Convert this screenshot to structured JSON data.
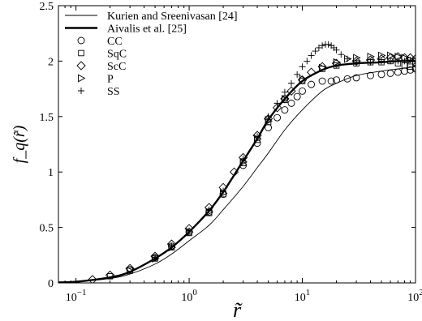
{
  "chart_data": {
    "type": "line",
    "xscale": "log",
    "xlim": [
      0.07,
      100
    ],
    "ylim": [
      0,
      2.5
    ],
    "xlabel": "r̃",
    "ylabel": "f_q(r̃)",
    "x_ticks": [
      {
        "value": 0.1,
        "base": "10",
        "exp": "−1"
      },
      {
        "value": 1,
        "base": "10",
        "exp": "0"
      },
      {
        "value": 10,
        "base": "10",
        "exp": "1"
      },
      {
        "value": 100,
        "base": "10",
        "exp": "2"
      }
    ],
    "y_ticks": [
      {
        "value": 0,
        "label": "0"
      },
      {
        "value": 0.5,
        "label": "0.5"
      },
      {
        "value": 1,
        "label": "1"
      },
      {
        "value": 1.5,
        "label": "1.5"
      },
      {
        "value": 2,
        "label": "2"
      },
      {
        "value": 2.5,
        "label": "2.5"
      }
    ],
    "legend_position": "top-left",
    "series": [
      {
        "name": "Kurien and Sreenivasan [24]",
        "style": "thin-line",
        "x": [
          0.07,
          0.1,
          0.2,
          0.3,
          0.5,
          0.7,
          1,
          1.5,
          2,
          3,
          4,
          5,
          7,
          10,
          15,
          20,
          30,
          50,
          70,
          100
        ],
        "y": [
          0.005,
          0.01,
          0.04,
          0.08,
          0.17,
          0.26,
          0.38,
          0.52,
          0.66,
          0.87,
          1.04,
          1.17,
          1.38,
          1.56,
          1.73,
          1.8,
          1.87,
          1.91,
          1.93,
          1.95
        ]
      },
      {
        "name": "Aivalis et al. [25]",
        "style": "thick-line",
        "x": [
          0.07,
          0.1,
          0.2,
          0.3,
          0.5,
          0.7,
          1,
          1.5,
          2,
          3,
          4,
          5,
          7,
          10,
          15,
          20,
          30,
          50,
          70,
          100
        ],
        "y": [
          0.005,
          0.01,
          0.05,
          0.1,
          0.22,
          0.32,
          0.46,
          0.65,
          0.82,
          1.1,
          1.3,
          1.47,
          1.66,
          1.82,
          1.92,
          1.96,
          1.98,
          1.99,
          2.0,
          2.0
        ]
      },
      {
        "name": "CC",
        "marker": "circle",
        "x": [
          0.3,
          0.5,
          0.7,
          1,
          1.5,
          2,
          3,
          4,
          5,
          6,
          7,
          8,
          9,
          10,
          12,
          15,
          18,
          20,
          25,
          30,
          40,
          50,
          60,
          70,
          80,
          90,
          100
        ],
        "y": [
          0.12,
          0.23,
          0.33,
          0.46,
          0.64,
          0.8,
          1.06,
          1.26,
          1.4,
          1.49,
          1.56,
          1.62,
          1.68,
          1.73,
          1.79,
          1.82,
          1.82,
          1.83,
          1.84,
          1.85,
          1.87,
          1.88,
          1.89,
          1.9,
          1.91,
          1.92,
          1.93
        ]
      },
      {
        "name": "SqC",
        "marker": "square",
        "x": [
          0.2,
          0.3,
          0.5,
          0.7,
          1,
          1.5,
          2,
          3,
          4,
          5,
          7,
          10,
          15,
          20,
          30,
          40,
          50,
          60,
          70,
          80,
          90,
          100
        ],
        "y": [
          0.06,
          0.11,
          0.22,
          0.32,
          0.45,
          0.63,
          0.8,
          1.08,
          1.29,
          1.45,
          1.65,
          1.82,
          1.93,
          1.96,
          1.98,
          1.99,
          1.99,
          2.0,
          1.98,
          1.96,
          1.95,
          1.94
        ]
      },
      {
        "name": "ScC",
        "marker": "diamond",
        "x": [
          0.14,
          0.2,
          0.3,
          0.5,
          0.7,
          1,
          1.5,
          2,
          2.5,
          3,
          4,
          5,
          6,
          7,
          8,
          10,
          12,
          15,
          20,
          30,
          40,
          50,
          60,
          70,
          80,
          90,
          100
        ],
        "y": [
          0.03,
          0.07,
          0.13,
          0.24,
          0.35,
          0.49,
          0.68,
          0.86,
          1.0,
          1.13,
          1.33,
          1.48,
          1.58,
          1.66,
          1.73,
          1.83,
          1.9,
          1.95,
          1.98,
          2.0,
          2.01,
          2.02,
          2.03,
          2.04,
          2.03,
          2.03,
          2.02
        ]
      },
      {
        "name": "P",
        "marker": "triangle-right",
        "x": [
          0.3,
          0.5,
          0.7,
          1,
          1.5,
          2,
          3,
          4,
          5,
          7,
          10,
          15,
          20,
          25,
          30,
          40,
          50,
          60,
          70,
          80,
          90,
          100
        ],
        "y": [
          0.11,
          0.22,
          0.32,
          0.46,
          0.64,
          0.81,
          1.09,
          1.3,
          1.46,
          1.66,
          1.84,
          1.94,
          1.99,
          2.02,
          2.03,
          2.04,
          2.05,
          2.05,
          2.04,
          2.03,
          2.01,
          2.0
        ]
      },
      {
        "name": "SS",
        "marker": "plus",
        "x": [
          0.5,
          0.7,
          1,
          1.5,
          2,
          3,
          4,
          5,
          6,
          7,
          8,
          9,
          10,
          11,
          12,
          13,
          14,
          15,
          16,
          17,
          18,
          19,
          20,
          22,
          25,
          30,
          40,
          50,
          60,
          70,
          80,
          90,
          100
        ],
        "y": [
          0.23,
          0.33,
          0.47,
          0.66,
          0.83,
          1.12,
          1.32,
          1.5,
          1.62,
          1.72,
          1.8,
          1.88,
          1.95,
          2.0,
          2.05,
          2.09,
          2.12,
          2.14,
          2.15,
          2.15,
          2.14,
          2.12,
          2.1,
          2.06,
          2.02,
          1.99,
          1.99,
          2.0,
          2.0,
          2.0,
          2.0,
          2.01,
          2.0
        ]
      }
    ]
  }
}
